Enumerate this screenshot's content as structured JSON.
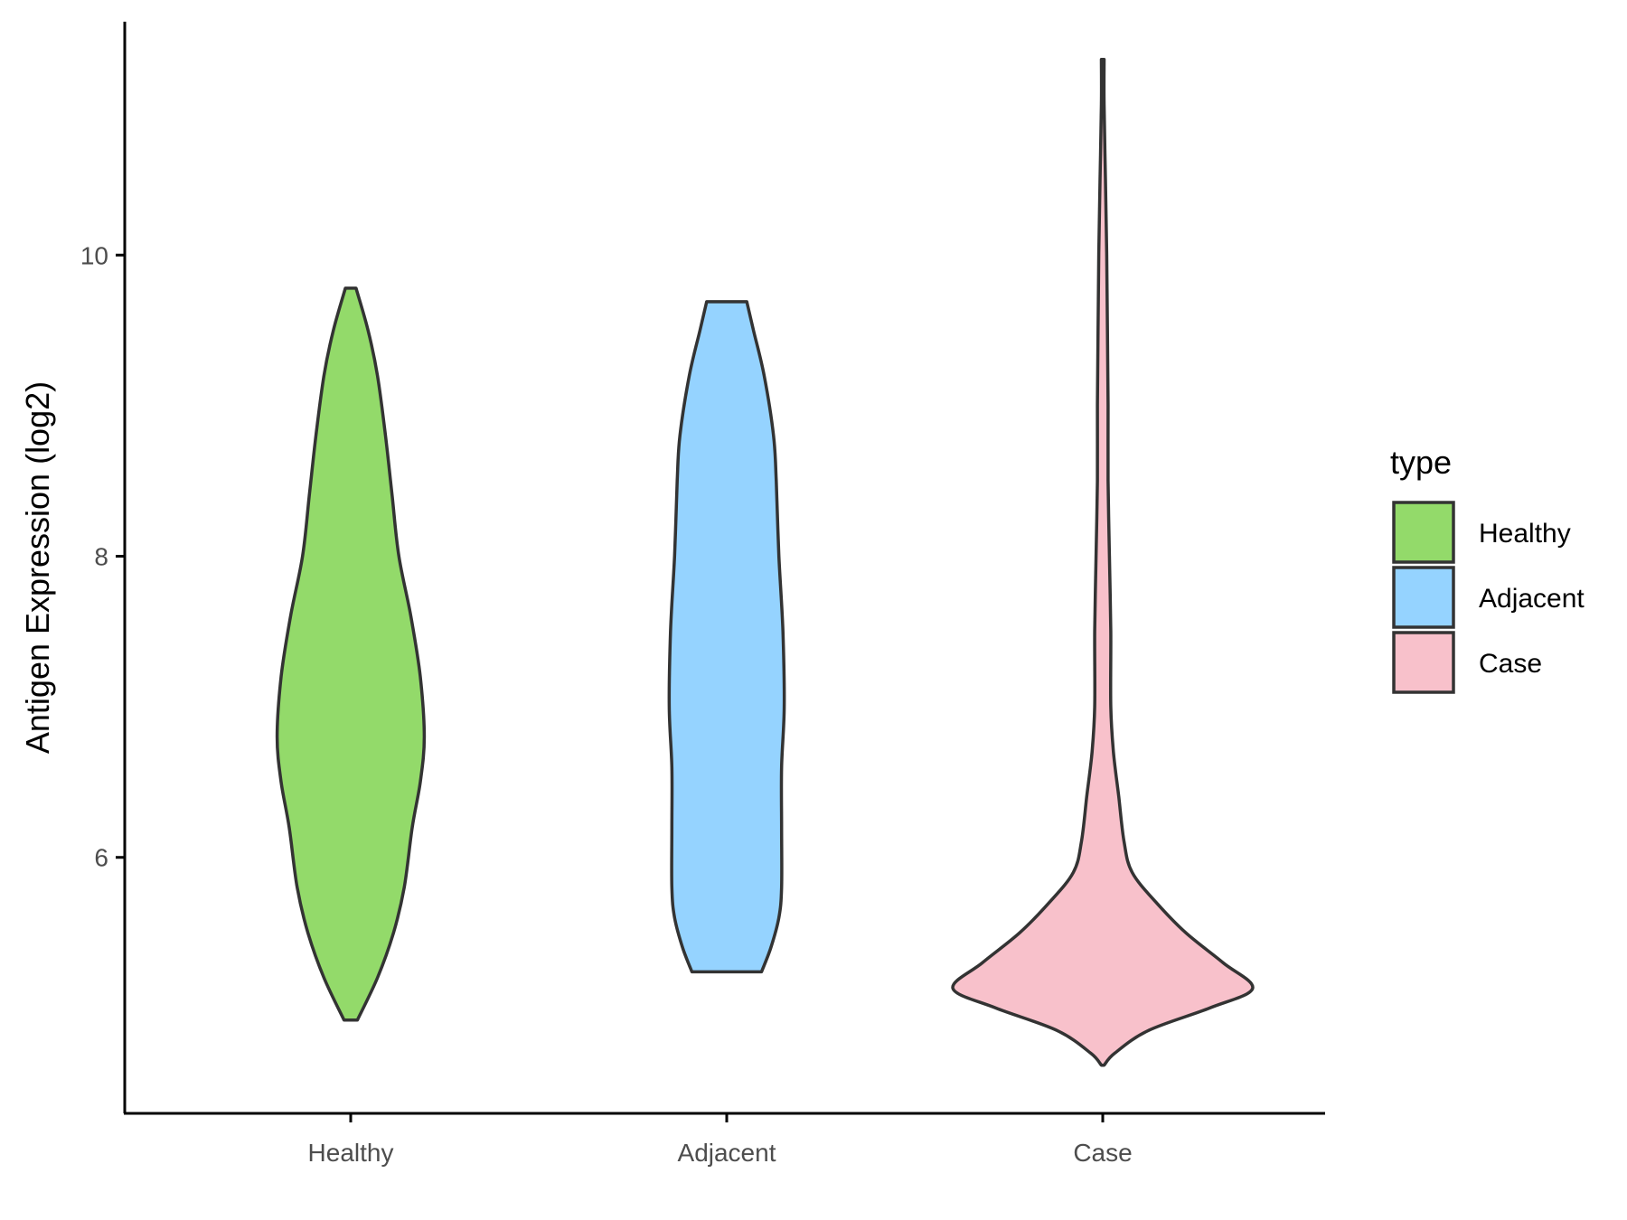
{
  "chart_data": {
    "type": "violin",
    "ylabel": "Antigen Expression (log2)",
    "xlabel": "",
    "categories": [
      "Healthy",
      "Adjacent",
      "Case"
    ],
    "y_ticks": [
      "6",
      "8",
      "10"
    ],
    "y_tick_values": [
      6,
      8,
      10
    ],
    "ylim": [
      4.3,
      11.55
    ],
    "grid": false,
    "legend": {
      "title": "type",
      "position": "right",
      "entries": [
        "Healthy",
        "Adjacent",
        "Case"
      ]
    },
    "colors": {
      "Healthy": "#93DA6A",
      "Adjacent": "#95D3FF",
      "Case": "#F8C1CB",
      "outline": "#333333"
    },
    "series": [
      {
        "category": "Healthy",
        "min": 4.92,
        "max": 9.78,
        "profile": [
          [
            4.92,
            0.05
          ],
          [
            5.2,
            0.2
          ],
          [
            5.5,
            0.32
          ],
          [
            5.8,
            0.4
          ],
          [
            6.2,
            0.46
          ],
          [
            6.5,
            0.52
          ],
          [
            6.8,
            0.55
          ],
          [
            7.2,
            0.52
          ],
          [
            7.6,
            0.45
          ],
          [
            8.0,
            0.36
          ],
          [
            8.4,
            0.31
          ],
          [
            8.8,
            0.26
          ],
          [
            9.2,
            0.2
          ],
          [
            9.5,
            0.13
          ],
          [
            9.78,
            0.04
          ]
        ]
      },
      {
        "category": "Adjacent",
        "min": 5.24,
        "max": 9.69,
        "profile": [
          [
            5.24,
            0.26
          ],
          [
            5.4,
            0.33
          ],
          [
            5.6,
            0.39
          ],
          [
            5.8,
            0.41
          ],
          [
            6.2,
            0.41
          ],
          [
            6.6,
            0.41
          ],
          [
            7.0,
            0.43
          ],
          [
            7.5,
            0.42
          ],
          [
            8.0,
            0.39
          ],
          [
            8.5,
            0.37
          ],
          [
            8.8,
            0.35
          ],
          [
            9.2,
            0.28
          ],
          [
            9.5,
            0.2
          ],
          [
            9.69,
            0.15
          ]
        ]
      },
      {
        "category": "Case",
        "min": 4.62,
        "max": 11.3,
        "profile": [
          [
            4.62,
            0.01
          ],
          [
            4.7,
            0.09
          ],
          [
            4.85,
            0.34
          ],
          [
            5.0,
            0.8
          ],
          [
            5.13,
            1.12
          ],
          [
            5.3,
            0.9
          ],
          [
            5.5,
            0.62
          ],
          [
            5.7,
            0.4
          ],
          [
            5.9,
            0.22
          ],
          [
            6.1,
            0.16
          ],
          [
            6.4,
            0.12
          ],
          [
            6.7,
            0.08
          ],
          [
            7.0,
            0.06
          ],
          [
            7.5,
            0.06
          ],
          [
            8.0,
            0.05
          ],
          [
            8.5,
            0.04
          ],
          [
            9.0,
            0.04
          ],
          [
            9.5,
            0.035
          ],
          [
            10.0,
            0.03
          ],
          [
            10.5,
            0.02
          ],
          [
            11.0,
            0.01
          ],
          [
            11.3,
            0.01
          ]
        ]
      }
    ]
  }
}
